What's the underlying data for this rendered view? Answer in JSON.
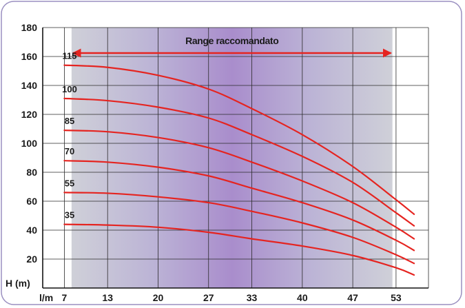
{
  "chart_data": {
    "type": "line",
    "xlabel": "l/m",
    "ylabel": "H (m)",
    "x_ticks": [
      "7",
      "13",
      "20",
      "27",
      "33",
      "40",
      "47",
      "53"
    ],
    "y_ticks": [
      "20",
      "40",
      "60",
      "80",
      "100",
      "120",
      "140",
      "160",
      "180"
    ],
    "ylim": [
      0,
      180
    ],
    "grid": true,
    "recommended_range": {
      "label": "Range raccomandato",
      "from": 8,
      "to": 52.5
    },
    "series": [
      {
        "name": "35",
        "points": [
          [
            7,
            44
          ],
          [
            13,
            43.5
          ],
          [
            20,
            42
          ],
          [
            27,
            38.5
          ],
          [
            33,
            34
          ],
          [
            40,
            29
          ],
          [
            47,
            22.5
          ],
          [
            53,
            14
          ],
          [
            55.5,
            9
          ]
        ]
      },
      {
        "name": "55",
        "points": [
          [
            7,
            66
          ],
          [
            13,
            65.5
          ],
          [
            20,
            63
          ],
          [
            27,
            59
          ],
          [
            33,
            53
          ],
          [
            40,
            45
          ],
          [
            47,
            35
          ],
          [
            53,
            23
          ],
          [
            55.5,
            17
          ]
        ]
      },
      {
        "name": "70",
        "points": [
          [
            7,
            88
          ],
          [
            13,
            87
          ],
          [
            20,
            83.5
          ],
          [
            27,
            77.5
          ],
          [
            33,
            69
          ],
          [
            40,
            59
          ],
          [
            47,
            47
          ],
          [
            53,
            33
          ],
          [
            55.5,
            26
          ]
        ]
      },
      {
        "name": "85",
        "points": [
          [
            7,
            109
          ],
          [
            13,
            108
          ],
          [
            20,
            104
          ],
          [
            27,
            97
          ],
          [
            33,
            87
          ],
          [
            40,
            74
          ],
          [
            47,
            59
          ],
          [
            53,
            42
          ],
          [
            55.5,
            34
          ]
        ]
      },
      {
        "name": "100",
        "points": [
          [
            7,
            131
          ],
          [
            13,
            129.5
          ],
          [
            20,
            125
          ],
          [
            27,
            117.5
          ],
          [
            33,
            106
          ],
          [
            40,
            91
          ],
          [
            47,
            73
          ],
          [
            53,
            52
          ],
          [
            55.5,
            43
          ]
        ]
      },
      {
        "name": "115",
        "points": [
          [
            7,
            154
          ],
          [
            13,
            152.5
          ],
          [
            20,
            147
          ],
          [
            27,
            137.5
          ],
          [
            33,
            124
          ],
          [
            40,
            106
          ],
          [
            47,
            84
          ],
          [
            53,
            61
          ],
          [
            55.5,
            51
          ]
        ]
      }
    ]
  },
  "colors": {
    "curve": "#e52420",
    "arrow": "#e52420",
    "frame_border": "#9a8fc0",
    "grid": "#2a2a2a",
    "band_edge": "#cfcfd7",
    "band_center": "#a98dcc"
  }
}
